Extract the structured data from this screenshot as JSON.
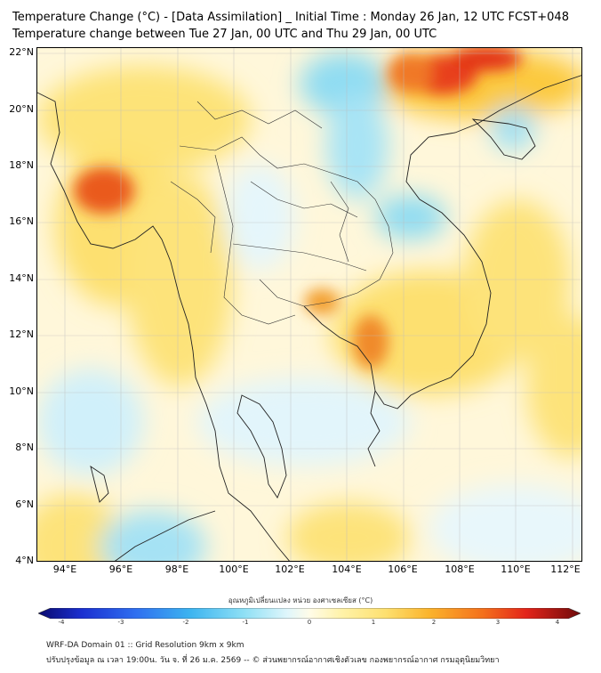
{
  "title_line1": "Temperature Change (°C) - [Data Assimilation] _ Initial Time : Monday 26 Jan, 12 UTC FCST+048",
  "title_line2": "Temperature change between Tue 27 Jan, 00 UTC and Thu 29 Jan, 00 UTC",
  "map": {
    "lat_labels": [
      "22°N",
      "20°N",
      "18°N",
      "16°N",
      "14°N",
      "12°N",
      "10°N",
      "8°N",
      "6°N",
      "4°N"
    ],
    "lon_labels": [
      "94°E",
      "96°E",
      "98°E",
      "100°E",
      "102°E",
      "104°E",
      "106°E",
      "108°E",
      "110°E",
      "112°E"
    ],
    "colors": {
      "warm_strong": "#e8401a",
      "warm": "#fbbf2c",
      "mild_warm": "#fde680",
      "neutral": "#fff9e0",
      "cool": "#8fdcf2",
      "cool_light": "#d6f2fa"
    }
  },
  "colorbar": {
    "title": "อุณหภูมิเปลี่ยนแปลง หน่วย องศาเซลเซียส (°C)",
    "ticks": [
      "-4",
      "-3",
      "-2",
      "-1",
      "0",
      "1",
      "2",
      "3",
      "4"
    ],
    "range": [
      -4,
      4
    ]
  },
  "footer_line1": "WRF-DA Domain 01 :: Grid Resolution 9km x 9km",
  "footer_line2": "ปรับปรุงข้อมูล ณ เวลา 19:00น. วัน จ. ที่ 26 ม.ค. 2569 -- © ส่วนพยากรณ์อากาศเชิงตัวเลข กองพยากรณ์อากาศ กรมอุตุนิยมวิทยา"
}
